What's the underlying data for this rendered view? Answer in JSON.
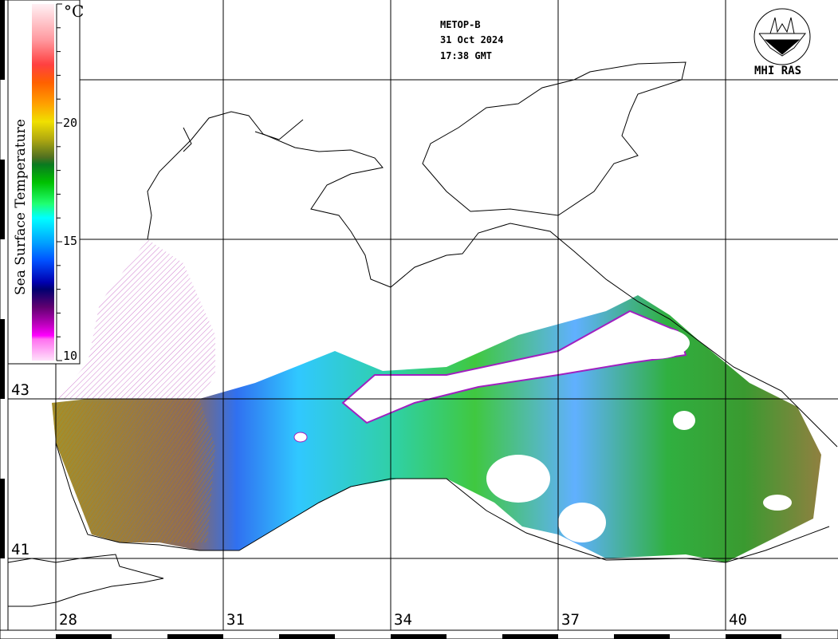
{
  "header": {
    "satellite": "METOP-B",
    "date": "31 Oct 2024",
    "time": "17:38 GMT"
  },
  "logo": {
    "text": "MHI RAS"
  },
  "legend": {
    "title": "Sea Surface Temperature",
    "unit": "°C",
    "tick_labels": [
      "20",
      "15",
      "10"
    ],
    "range": [
      10,
      25
    ],
    "colors": [
      "#ffe8f0",
      "#ff9aa0",
      "#ff4040",
      "#ff6000",
      "#ffa000",
      "#f0e000",
      "#8a8020",
      "#108020",
      "#00c000",
      "#00ff80",
      "#00ffff",
      "#00a0ff",
      "#0040ff",
      "#0000a0",
      "#400060",
      "#a000a0",
      "#ff00ff",
      "#ffc0f8"
    ]
  },
  "latitude_labels": [
    "43",
    "41"
  ],
  "longitude_labels": [
    "28",
    "31",
    "34",
    "37",
    "40"
  ]
}
